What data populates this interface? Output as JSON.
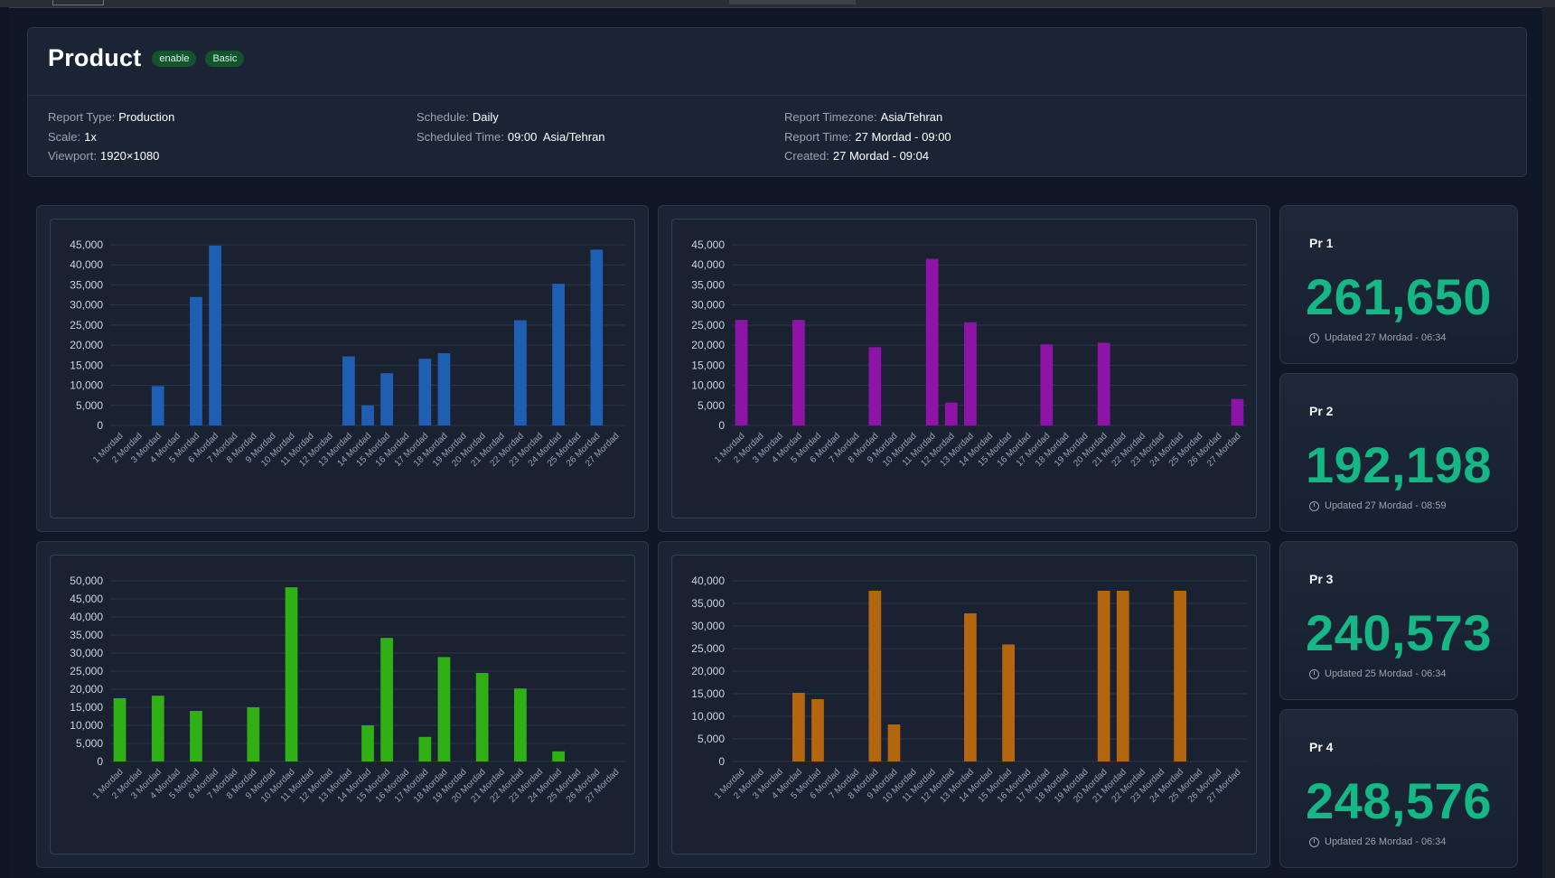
{
  "header": {
    "title": "Product",
    "badges": [
      "enable",
      "Basic"
    ],
    "col1": [
      {
        "label": "Report Type:",
        "value": "Production"
      },
      {
        "label": "Scale:",
        "value": "1x"
      },
      {
        "label": "Viewport:",
        "value": "1920×1080"
      }
    ],
    "col2": [
      {
        "label": "Schedule:",
        "value": "Daily"
      },
      {
        "label": "Scheduled Time:",
        "value": "09:00  Asia/Tehran"
      }
    ],
    "col3": [
      {
        "label": "Report Timezone:",
        "value": "Asia/Tehran"
      },
      {
        "label": "Report Time:",
        "value": "27 Mordad - 09:00"
      },
      {
        "label": "Created:",
        "value": "27 Mordad - 09:04"
      }
    ]
  },
  "stats": [
    {
      "title": "Pr 1",
      "value": "261,650",
      "updated": "Updated 27 Mordad - 06:34"
    },
    {
      "title": "Pr 2",
      "value": "192,198",
      "updated": "Updated 27 Mordad - 08:59"
    },
    {
      "title": "Pr 3",
      "value": "240,573",
      "updated": "Updated 25 Mordad - 06:34"
    },
    {
      "title": "Pr 4",
      "value": "248,576",
      "updated": "Updated 26 Mordad - 06:34"
    }
  ],
  "chart_data": [
    {
      "type": "bar",
      "color": "#1e5fb4",
      "ylim": [
        0,
        45000
      ],
      "yticks": [
        0,
        5000,
        10000,
        15000,
        20000,
        25000,
        30000,
        35000,
        40000,
        45000
      ],
      "categories": [
        "1 Mordad",
        "2 Mordad",
        "3 Mordad",
        "4 Mordad",
        "5 Mordad",
        "6 Mordad",
        "7 Mordad",
        "8 Mordad",
        "9 Mordad",
        "10 Mordad",
        "11 Mordad",
        "12 Mordad",
        "13 Mordad",
        "14 Mordad",
        "15 Mordad",
        "16 Mordad",
        "17 Mordad",
        "18 Mordad",
        "19 Mordad",
        "20 Mordad",
        "21 Mordad",
        "22 Mordad",
        "23 Mordad",
        "24 Mordad",
        "25 Mordad",
        "26 Mordad",
        "27 Mordad"
      ],
      "values": [
        0,
        0,
        9800,
        0,
        32000,
        44800,
        0,
        0,
        0,
        0,
        0,
        0,
        17200,
        5000,
        13000,
        0,
        16600,
        18000,
        0,
        0,
        0,
        26200,
        0,
        35300,
        0,
        43800,
        0
      ]
    },
    {
      "type": "bar",
      "color": "#8e14a8",
      "ylim": [
        0,
        45000
      ],
      "yticks": [
        0,
        5000,
        10000,
        15000,
        20000,
        25000,
        30000,
        35000,
        40000,
        45000
      ],
      "categories": [
        "1 Mordad",
        "2 Mordad",
        "3 Mordad",
        "4 Mordad",
        "5 Mordad",
        "6 Mordad",
        "7 Mordad",
        "8 Mordad",
        "9 Mordad",
        "10 Mordad",
        "11 Mordad",
        "12 Mordad",
        "13 Mordad",
        "14 Mordad",
        "15 Mordad",
        "16 Mordad",
        "17 Mordad",
        "18 Mordad",
        "19 Mordad",
        "20 Mordad",
        "21 Mordad",
        "22 Mordad",
        "23 Mordad",
        "24 Mordad",
        "25 Mordad",
        "26 Mordad",
        "27 Mordad"
      ],
      "values": [
        26300,
        0,
        0,
        26300,
        0,
        0,
        0,
        19500,
        0,
        0,
        41500,
        5700,
        25700,
        0,
        0,
        0,
        20200,
        0,
        0,
        20600,
        0,
        0,
        0,
        0,
        0,
        0,
        6600
      ]
    },
    {
      "type": "bar",
      "color": "#2fb014",
      "ylim": [
        0,
        50000
      ],
      "yticks": [
        0,
        5000,
        10000,
        15000,
        20000,
        25000,
        30000,
        35000,
        40000,
        45000,
        50000
      ],
      "categories": [
        "1 Mordad",
        "2 Mordad",
        "3 Mordad",
        "4 Mordad",
        "5 Mordad",
        "6 Mordad",
        "7 Mordad",
        "8 Mordad",
        "9 Mordad",
        "10 Mordad",
        "11 Mordad",
        "12 Mordad",
        "13 Mordad",
        "14 Mordad",
        "15 Mordad",
        "16 Mordad",
        "17 Mordad",
        "18 Mordad",
        "19 Mordad",
        "20 Mordad",
        "21 Mordad",
        "22 Mordad",
        "23 Mordad",
        "24 Mordad",
        "25 Mordad",
        "26 Mordad",
        "27 Mordad"
      ],
      "xticklabels": [
        "1 Mordad",
        "2 Mordad",
        "3 Mordad",
        "4 Mordad",
        "5 Mordad",
        "6 Mordad",
        "7 Mordad",
        "8 Mordad",
        "9 Mordad",
        "10 Mordad",
        "11 Mordad",
        "12 Mordad",
        "13 Mordad",
        "14 Mordad",
        "15 Mordad",
        "16 Mordad",
        "17 Mordad",
        "18 Mordad",
        "19 Mordad",
        "20 Mordad",
        "21 Mordad",
        "22 Mordad",
        "23 Mordad",
        "24 Mordad",
        "25 Mordad",
        "26 Mordad",
        "27 Mordad"
      ],
      "values": [
        17500,
        0,
        18200,
        0,
        14000,
        0,
        0,
        15000,
        0,
        48200,
        0,
        0,
        0,
        10000,
        34200,
        0,
        6800,
        28900,
        0,
        24500,
        0,
        20200,
        0,
        2800,
        0,
        0,
        0
      ]
    },
    {
      "type": "bar",
      "color": "#b4660e",
      "ylim": [
        0,
        40000
      ],
      "yticks": [
        0,
        5000,
        10000,
        15000,
        20000,
        25000,
        30000,
        35000,
        40000
      ],
      "categories": [
        "1 Mordad",
        "2 Mordad",
        "3 Mordad",
        "4 Mordad",
        "5 Mordad",
        "6 Mordad",
        "7 Mordad",
        "8 Mordad",
        "9 Mordad",
        "10 Mordad",
        "11 Mordad",
        "12 Mordad",
        "13 Mordad",
        "14 Mordad",
        "15 Mordad",
        "16 Mordad",
        "17 Mordad",
        "18 Mordad",
        "19 Mordad",
        "20 Mordad",
        "21 Mordad",
        "22 Mordad",
        "23 Mordad",
        "24 Mordad",
        "25 Mordad",
        "26 Mordad",
        "27 Mordad"
      ],
      "values": [
        0,
        0,
        0,
        15200,
        13800,
        0,
        0,
        37800,
        8200,
        0,
        0,
        0,
        32800,
        0,
        25900,
        0,
        0,
        0,
        0,
        37800,
        37800,
        0,
        0,
        37800,
        0,
        0,
        0
      ]
    }
  ]
}
